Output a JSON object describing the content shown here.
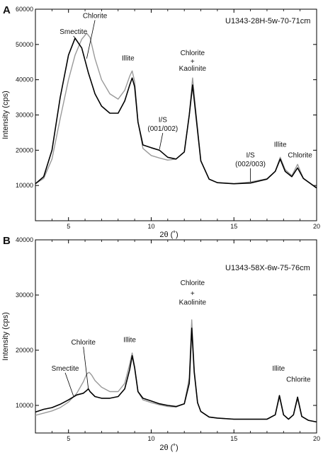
{
  "chart_data": [
    {
      "type": "line",
      "panel": "A",
      "sample": "U1343-28H-5w-70-71cm",
      "xlabel": "2θ (˚)",
      "ylabel": "Intensity (cps)",
      "xlim": [
        3,
        20
      ],
      "ylim": [
        0,
        60000
      ],
      "xticks": [
        5,
        10,
        15,
        20
      ],
      "yticks": [
        10000,
        20000,
        30000,
        40000,
        50000,
        60000
      ],
      "grid": false,
      "series": [
        {
          "color": "#000000",
          "x": [
            3.0,
            3.5,
            4.0,
            4.5,
            5.0,
            5.4,
            5.8,
            6.2,
            6.6,
            7.0,
            7.5,
            8.0,
            8.4,
            8.7,
            8.85,
            9.0,
            9.2,
            9.5,
            10.0,
            10.5,
            11.0,
            11.5,
            12.0,
            12.3,
            12.5,
            12.7,
            13.0,
            13.5,
            14.0,
            15.0,
            16.0,
            17.0,
            17.5,
            17.8,
            18.1,
            18.5,
            18.85,
            19.2,
            20.0
          ],
          "y": [
            10500,
            12500,
            20000,
            35000,
            47000,
            51800,
            49000,
            42000,
            36000,
            32500,
            30500,
            30500,
            34000,
            38500,
            40500,
            38000,
            28000,
            21500,
            20700,
            20000,
            18000,
            17500,
            19500,
            30000,
            38500,
            30000,
            17000,
            11800,
            10800,
            10500,
            10700,
            11800,
            14000,
            17500,
            14000,
            12500,
            15000,
            12000,
            9300
          ]
        },
        {
          "color": "#9a9a9a",
          "x": [
            3.0,
            3.5,
            4.0,
            4.5,
            5.0,
            5.4,
            5.8,
            6.1,
            6.3,
            6.6,
            7.0,
            7.5,
            8.0,
            8.4,
            8.7,
            8.85,
            9.0,
            9.2,
            9.5,
            10.0,
            10.5,
            11.0,
            11.5,
            12.0,
            12.3,
            12.5,
            12.7,
            13.0,
            13.5,
            14.0,
            15.0,
            16.0,
            17.0,
            17.5,
            17.8,
            18.1,
            18.5,
            18.85,
            19.2,
            20.0
          ],
          "y": [
            10500,
            12000,
            17500,
            29000,
            40000,
            47000,
            51500,
            53200,
            52000,
            46000,
            40000,
            36000,
            34500,
            37000,
            41000,
            42500,
            39500,
            28000,
            20500,
            18500,
            17800,
            17200,
            17500,
            19500,
            30000,
            40500,
            31000,
            17000,
            11800,
            10800,
            10500,
            11000,
            11900,
            14000,
            18000,
            14500,
            12800,
            16000,
            12000,
            9300
          ]
        }
      ],
      "annotations": [
        {
          "text": "Smectite",
          "x": 5.3,
          "y": 53000
        },
        {
          "text": "Chlorite",
          "x": 6.6,
          "y": 57500
        },
        {
          "text": "Illite",
          "x": 8.6,
          "y": 45500
        },
        {
          "text": "Chlorite",
          "x": 12.5,
          "y": 47000
        },
        {
          "text": "+",
          "x": 12.5,
          "y": 44500
        },
        {
          "text": "Kaolinite",
          "x": 12.5,
          "y": 42500
        },
        {
          "text": "I/S",
          "x": 10.7,
          "y": 28000
        },
        {
          "text": "(001/002)",
          "x": 10.7,
          "y": 25500
        },
        {
          "text": "I/S",
          "x": 16.0,
          "y": 18000
        },
        {
          "text": "(002/003)",
          "x": 16.0,
          "y": 15500
        },
        {
          "text": "Illite",
          "x": 17.8,
          "y": 21000
        },
        {
          "text": "Chlorite",
          "x": 19.0,
          "y": 18000
        }
      ]
    },
    {
      "type": "line",
      "panel": "B",
      "sample": "U1343-58X-6w-75-76cm",
      "xlabel": "2θ (˚)",
      "ylabel": "Intensity (cps)",
      "xlim": [
        3,
        20
      ],
      "ylim": [
        5000,
        40000
      ],
      "xticks": [
        5,
        10,
        15,
        20
      ],
      "yticks": [
        10000,
        20000,
        30000,
        40000
      ],
      "grid": false,
      "series": [
        {
          "color": "#000000",
          "x": [
            3.0,
            3.5,
            4.0,
            4.5,
            5.0,
            5.5,
            5.9,
            6.1,
            6.2,
            6.3,
            6.6,
            7.0,
            7.5,
            8.0,
            8.4,
            8.7,
            8.85,
            9.0,
            9.2,
            9.5,
            10.0,
            10.5,
            11.0,
            11.5,
            12.0,
            12.3,
            12.45,
            12.6,
            12.8,
            13.0,
            13.5,
            14.0,
            15.0,
            16.0,
            17.0,
            17.5,
            17.75,
            18.0,
            18.3,
            18.6,
            18.85,
            19.1,
            19.5,
            20.0
          ],
          "y": [
            8800,
            9300,
            9600,
            10200,
            11000,
            11900,
            12200,
            12700,
            13000,
            12500,
            11600,
            11300,
            11300,
            11600,
            13000,
            16500,
            19000,
            16800,
            12500,
            11300,
            10800,
            10300,
            10000,
            9800,
            10300,
            14000,
            24000,
            16000,
            10500,
            8900,
            7900,
            7700,
            7500,
            7500,
            7500,
            8300,
            11800,
            8300,
            7500,
            8300,
            11500,
            8000,
            7300,
            7000
          ]
        },
        {
          "color": "#9a9a9a",
          "x": [
            3.0,
            3.5,
            4.0,
            4.5,
            5.0,
            5.5,
            5.9,
            6.1,
            6.25,
            6.4,
            6.6,
            7.0,
            7.5,
            8.0,
            8.4,
            8.7,
            8.85,
            9.0,
            9.2,
            9.5,
            10.0,
            10.5,
            11.0,
            11.5,
            12.0,
            12.3,
            12.45,
            12.6,
            12.8,
            13.0,
            13.5,
            14.0,
            15.0,
            16.0,
            17.0,
            17.5,
            17.75,
            18.0,
            18.3,
            18.6,
            18.85,
            19.1,
            19.5,
            20.0
          ],
          "y": [
            8200,
            8600,
            9000,
            9600,
            10600,
            12200,
            14300,
            15700,
            16000,
            15500,
            14500,
            13300,
            12500,
            12500,
            14000,
            17500,
            19500,
            17000,
            12500,
            11000,
            10500,
            10100,
            9800,
            9700,
            10300,
            15000,
            25500,
            16500,
            10500,
            8900,
            7900,
            7700,
            7500,
            7500,
            7500,
            8300,
            11500,
            8300,
            7500,
            8300,
            11200,
            8000,
            7300,
            7000
          ]
        }
      ],
      "annotations": [
        {
          "text": "Smectite",
          "x": 4.8,
          "y": 16300
        },
        {
          "text": "Chlorite",
          "x": 5.9,
          "y": 21000
        },
        {
          "text": "Illite",
          "x": 8.7,
          "y": 21500
        },
        {
          "text": "Chlorite",
          "x": 12.5,
          "y": 31800
        },
        {
          "text": "+",
          "x": 12.5,
          "y": 29900
        },
        {
          "text": "Kaolinite",
          "x": 12.5,
          "y": 28300
        },
        {
          "text": "Illite",
          "x": 17.7,
          "y": 16300
        },
        {
          "text": "Chlorite",
          "x": 18.9,
          "y": 14300
        }
      ]
    }
  ]
}
